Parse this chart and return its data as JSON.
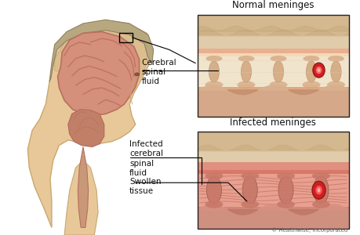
{
  "title_normal": "Normal meninges",
  "title_infected": "Infected meninges",
  "label_csf": "Cerebral\nspinal\nfluid",
  "label_infected_csf": "Infected\ncerebral\nspinal\nfluid",
  "label_swollen": "Swollen\ntissue",
  "copyright": "© Healthwise, Incorporated",
  "text_color": "#111111",
  "face_skin": "#e8c898",
  "face_edge": "#c8a870",
  "skull_color": "#d4b888",
  "hair_color": "#b8a880",
  "hair_edge": "#908060",
  "brain_fill": "#d4907a",
  "brain_edge": "#b87060",
  "brain_sulci": "#c07060",
  "cereb_fill": "#c08068",
  "spine_fill": "#c89878",
  "nbox_skin": "#d4b890",
  "nbox_skull": "#e0ccaa",
  "nbox_m1": "#e8b090",
  "nbox_m2": "#f5d8b8",
  "nbox_m3": "#e0a880",
  "nbox_csf": "#f0e4cc",
  "nbox_trab": "#d4a880",
  "nbox_brain": "#d4a888",
  "nbox_vessel_outer": "#cc2020",
  "nbox_vessel_inner": "#ff4444",
  "ibox_skin": "#d4b890",
  "ibox_skull": "#e0ccaa",
  "ibox_m1": "#e09080",
  "ibox_m2": "#d87868",
  "ibox_csf": "#e8a090",
  "ibox_trab": "#c87868",
  "ibox_brain": "#d09080",
  "ibox_vessel_outer": "#cc2020",
  "ibox_vessel_inner": "#ff4444",
  "ibox_streak": "#c06858",
  "line_color": "#333333",
  "box_edge": "#222222"
}
